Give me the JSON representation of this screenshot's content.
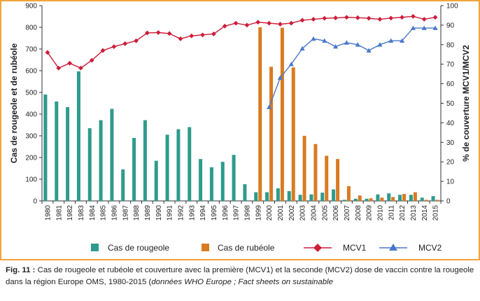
{
  "chart_data": {
    "type": "bar+line",
    "x": [
      "1980",
      "1981",
      "1982",
      "1983",
      "1984",
      "1985",
      "1986",
      "1987",
      "1988",
      "1989",
      "1990",
      "1991",
      "1992",
      "1993",
      "1994",
      "1995",
      "1996",
      "1997",
      "1998",
      "1999",
      "2000",
      "2001",
      "2002",
      "2003",
      "2004",
      "2005",
      "2006",
      "2007",
      "2008",
      "2009",
      "2010",
      "2011",
      "2012",
      "2013",
      "2014",
      "2015"
    ],
    "ylabel_left": "Cas de rougeole et de rubéole",
    "ylabel_right": "% de couverture MCV1/MCV2",
    "ylim_left": [
      0,
      900
    ],
    "yticks_left": [
      0,
      100,
      200,
      300,
      400,
      500,
      600,
      700,
      800,
      900
    ],
    "ylim_right": [
      0,
      100
    ],
    "yticks_right": [
      0,
      10,
      20,
      30,
      40,
      50,
      60,
      70,
      80,
      90,
      100
    ],
    "legend_position": "bottom",
    "grid": false,
    "series": [
      {
        "name": "Cas de rougeole",
        "type": "bar",
        "axis": "left",
        "color": "#2e9b8c",
        "values": [
          490,
          458,
          432,
          597,
          335,
          372,
          424,
          145,
          290,
          372,
          185,
          305,
          330,
          340,
          193,
          155,
          180,
          212,
          77,
          40,
          40,
          58,
          45,
          28,
          30,
          38,
          53,
          5,
          10,
          10,
          30,
          35,
          28,
          28,
          15,
          22
        ]
      },
      {
        "name": "Cas de rubéole",
        "type": "bar",
        "axis": "left",
        "color": "#d97b22",
        "values": [
          null,
          null,
          null,
          null,
          null,
          null,
          null,
          null,
          null,
          null,
          null,
          null,
          null,
          null,
          null,
          null,
          null,
          null,
          null,
          800,
          618,
          798,
          615,
          300,
          262,
          208,
          193,
          68,
          25,
          12,
          15,
          18,
          32,
          40,
          5,
          5
        ]
      },
      {
        "name": "MCV1",
        "type": "line",
        "axis": "right",
        "color": "#cc1d3a",
        "marker": "diamond",
        "values": [
          76,
          68,
          70.5,
          68,
          72,
          77,
          79,
          80.5,
          82,
          86,
          86.2,
          85.7,
          83,
          84.5,
          85,
          85.5,
          89.5,
          91,
          90,
          91.5,
          91,
          90.5,
          91,
          92.5,
          93,
          93.5,
          93.7,
          94,
          93.8,
          93.5,
          93,
          93.6,
          94,
          94.5,
          93,
          94
        ]
      },
      {
        "name": "MCV2",
        "type": "line",
        "axis": "right",
        "color": "#4a78c8",
        "marker": "triangle",
        "values": [
          null,
          null,
          null,
          null,
          null,
          null,
          null,
          null,
          null,
          null,
          null,
          null,
          null,
          null,
          null,
          null,
          null,
          null,
          null,
          null,
          48,
          63,
          70,
          78,
          83,
          82,
          79,
          81,
          80,
          77,
          80,
          82,
          82,
          88.5,
          88.5,
          88.5
        ]
      }
    ]
  },
  "caption": {
    "fig_label": "Fig. 11 :",
    "text": " Cas de rougeole et rubéole et couverture avec la première (MCV1) et la seconde (MCV2) dose de vaccin contre la rougeole dans la région Europe OMS, 1980-2015 (",
    "italic": "données WHO Europe ; Fact sheets on sustainable"
  }
}
